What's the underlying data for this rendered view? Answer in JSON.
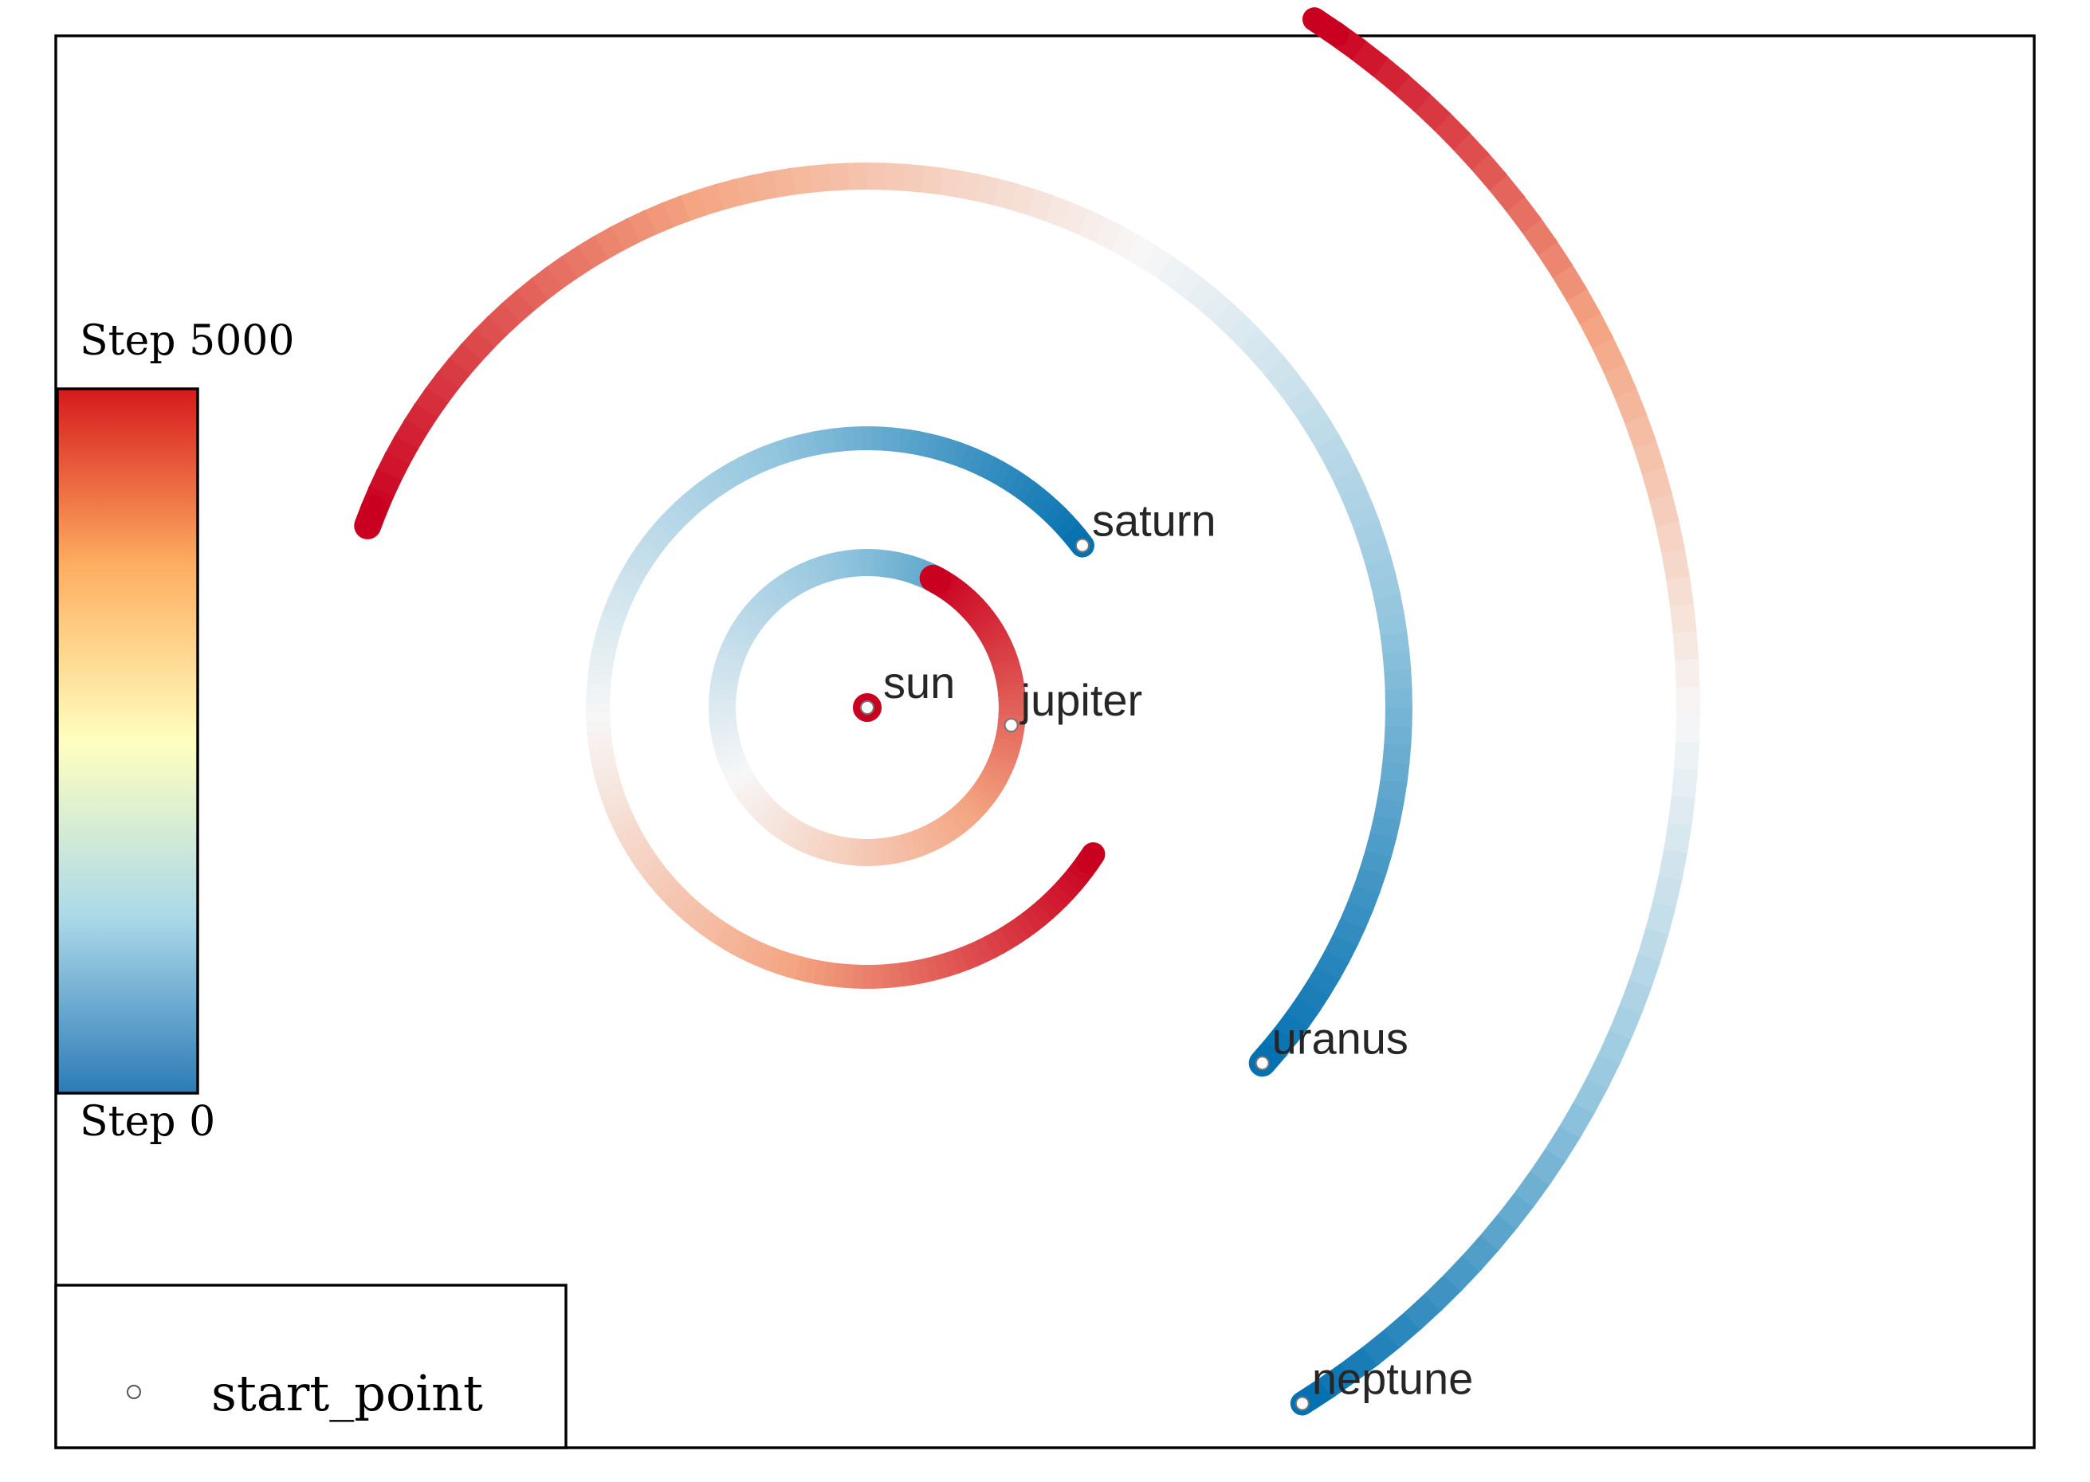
{
  "chart_data": {
    "type": "line",
    "title": "",
    "xlabel": "",
    "ylabel": "",
    "grid": false,
    "colormap": {
      "name": "RdYlBu_r",
      "stops": [
        "#2c7bb6",
        "#abd9e9",
        "#ffffbf",
        "#fdae61",
        "#d7191c"
      ],
      "top_label": "Step 5000",
      "bottom_label": "Step 0"
    },
    "trajectory_colormap": [
      "#0571b0",
      "#92c5de",
      "#f7f7f7",
      "#f4a582",
      "#ca0020"
    ],
    "legend": {
      "position": "lower-left",
      "entries": [
        {
          "label": "start_point",
          "marker": "open-circle"
        }
      ]
    },
    "bodies": [
      {
        "name": "sun",
        "center": [
          0,
          0
        ],
        "radius": 0.0,
        "start_angle_deg": 0,
        "sweep_deg": 0
      },
      {
        "name": "jupiter",
        "center": [
          0,
          0
        ],
        "radius": 5.2,
        "start_angle_deg": -7,
        "sweep_deg": 430
      },
      {
        "name": "saturn",
        "center": [
          0,
          0
        ],
        "radius": 9.5,
        "start_angle_deg": 37,
        "sweep_deg": 290
      },
      {
        "name": "uranus",
        "center": [
          0,
          0
        ],
        "radius": 19.2,
        "start_angle_deg": -42,
        "sweep_deg": 202
      },
      {
        "name": "neptune",
        "center": [
          0,
          0
        ],
        "radius": 30.1,
        "start_angle_deg": -58,
        "sweep_deg": 115
      }
    ]
  }
}
